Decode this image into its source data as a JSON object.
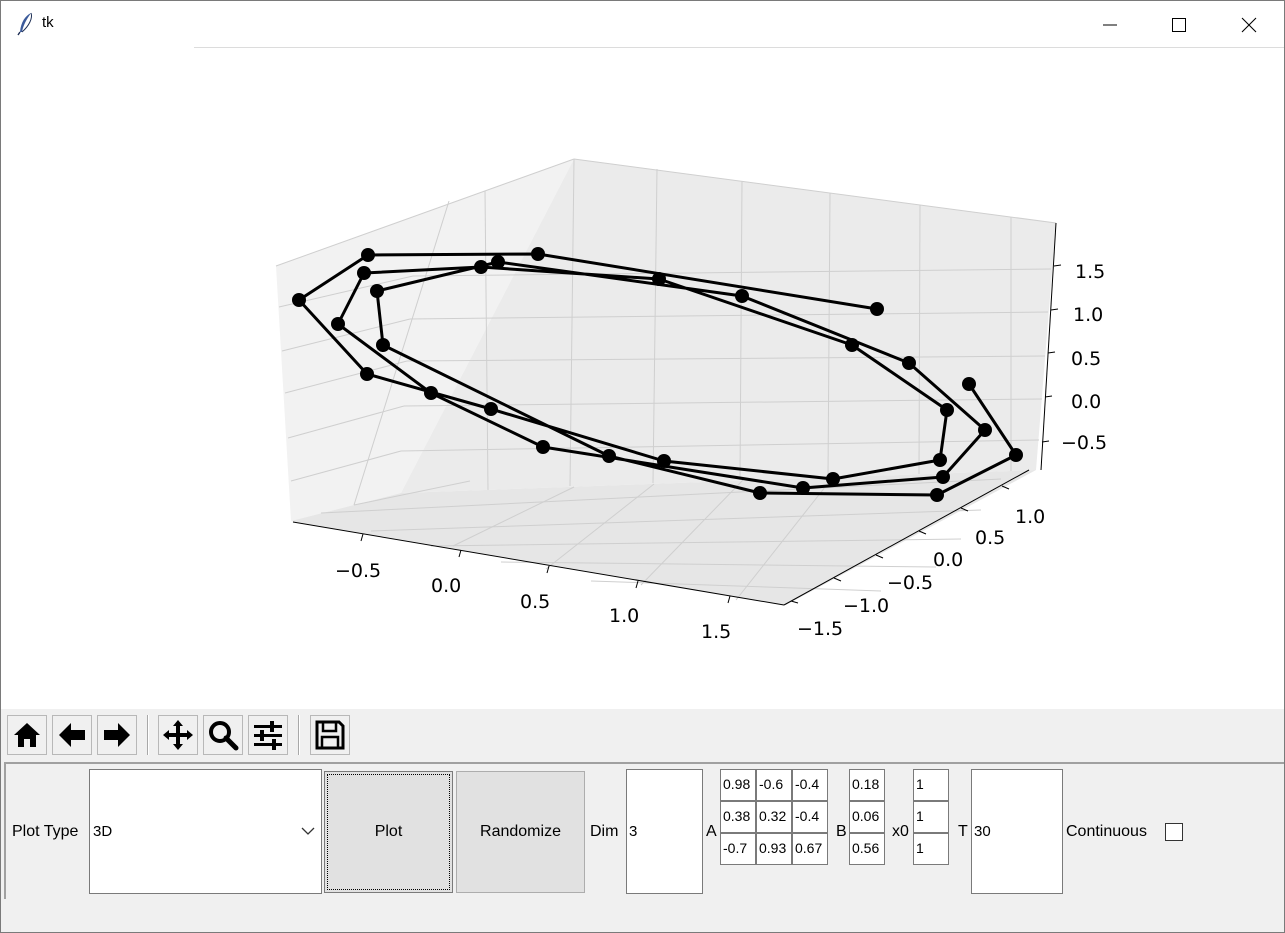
{
  "window": {
    "title": "tk"
  },
  "toolbar": {
    "buttons": [
      {
        "name": "home-icon"
      },
      {
        "name": "back-arrow-icon"
      },
      {
        "name": "forward-arrow-icon"
      },
      {
        "name": "pan-icon"
      },
      {
        "name": "zoom-icon"
      },
      {
        "name": "configure-subplots-icon"
      },
      {
        "name": "save-icon"
      }
    ]
  },
  "controls": {
    "plot_type_label": "Plot Type",
    "plot_type_value": "3D",
    "plot_button": "Plot",
    "randomize_button": "Randomize",
    "dim_label": "Dim",
    "dim_value": "3",
    "a_label": "A",
    "A": [
      [
        "0.98",
        "-0.6",
        "-0.4"
      ],
      [
        "0.38",
        "0.32",
        "-0.4"
      ],
      [
        "-0.7",
        "0.93",
        "0.67"
      ]
    ],
    "b_label": "B",
    "B": [
      "0.18",
      "0.06",
      "0.56"
    ],
    "x0_label": "x0",
    "x0": [
      "1",
      "1",
      "1"
    ],
    "t_label": "T",
    "t_value": "30",
    "continuous_label": "Continuous",
    "continuous_checked": false
  },
  "chart_data": {
    "type": "line",
    "projection": "3d",
    "title": "",
    "x_ticks": [
      "−0.5",
      "0.0",
      "0.5",
      "1.0",
      "1.5"
    ],
    "y_ticks": [
      "−1.5",
      "−1.0",
      "−0.5",
      "0.0",
      "0.5",
      "1.0"
    ],
    "z_ticks": [
      "−0.5",
      "0.0",
      "0.5",
      "1.0",
      "1.5"
    ],
    "marker": "circle",
    "line_color": "#000000",
    "grid": true,
    "points_count": 31
  }
}
